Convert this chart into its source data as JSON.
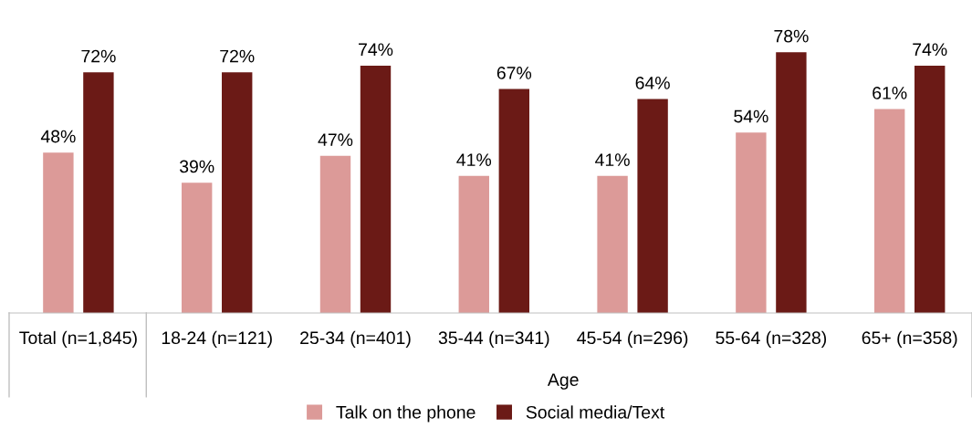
{
  "chart_data": {
    "type": "bar",
    "categories": [
      "Total (n=1,845)",
      "18-24 (n=121)",
      "25-34 (n=401)",
      "35-44 (n=341)",
      "45-54 (n=296)",
      "55-64 (n=328)",
      "65+ (n=358)"
    ],
    "series": [
      {
        "name": "Talk on the phone",
        "color": "#dc9a98",
        "values": [
          48,
          39,
          47,
          41,
          41,
          54,
          61
        ],
        "value_labels": [
          "48%",
          "39%",
          "47%",
          "41%",
          "41%",
          "54%",
          "61%"
        ]
      },
      {
        "name": "Social media/Text",
        "color": "#6b1a16",
        "values": [
          72,
          72,
          74,
          67,
          64,
          78,
          74
        ],
        "value_labels": [
          "72%",
          "72%",
          "74%",
          "67%",
          "64%",
          "78%",
          "74%"
        ]
      }
    ],
    "annotations": [
      "Age"
    ],
    "legend": "bottom"
  }
}
